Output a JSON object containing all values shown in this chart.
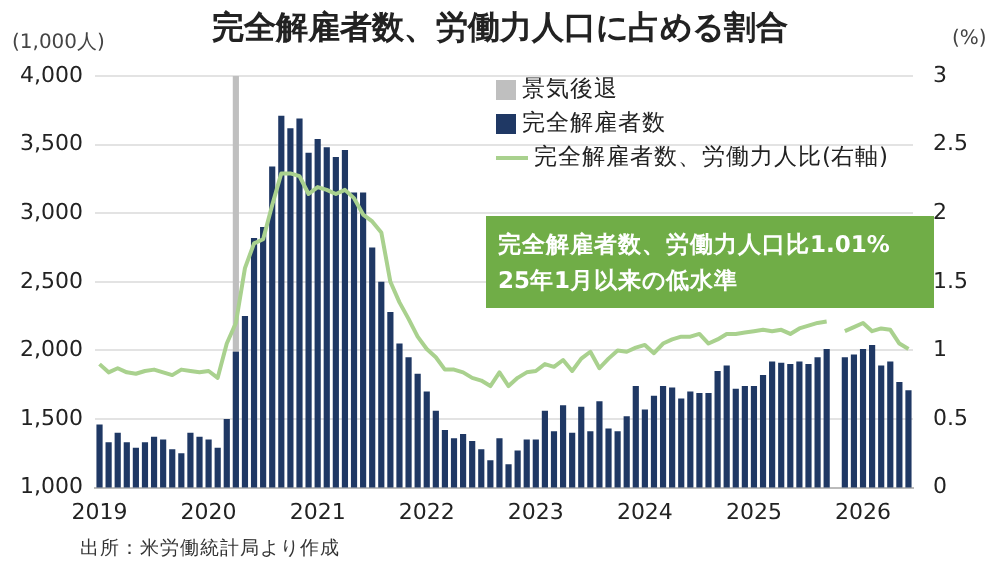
{
  "chart_data": {
    "type": "bar",
    "title": "完全解雇者数、労働力人口に占める割合",
    "ylabel": "(1,000人)",
    "y2label": "(%)",
    "categories": [
      "2019",
      null,
      null,
      null,
      null,
      null,
      null,
      null,
      null,
      null,
      null,
      null,
      "2020",
      null,
      null,
      null,
      null,
      null,
      null,
      null,
      null,
      null,
      null,
      null,
      "2021",
      null,
      null,
      null,
      null,
      null,
      null,
      null,
      null,
      null,
      null,
      null,
      "2022",
      null,
      null,
      null,
      null,
      null,
      null,
      null,
      null,
      null,
      null,
      null,
      "2023",
      null,
      null,
      null,
      null,
      null,
      null,
      null,
      null,
      null,
      null,
      null,
      "2024",
      null,
      null,
      null,
      null,
      null,
      null,
      null,
      null,
      null,
      null,
      null,
      "2025",
      null,
      null,
      null,
      null,
      null,
      null,
      null,
      null,
      null,
      null,
      null,
      "2026",
      null,
      null,
      null,
      null,
      null
    ],
    "series": [
      {
        "name": "景気後退",
        "color": "#bfbfbf",
        "values": [
          null,
          null,
          null,
          null,
          null,
          null,
          null,
          null,
          null,
          null,
          null,
          null,
          null,
          null,
          null,
          4000,
          null,
          null,
          null,
          null,
          null,
          null,
          null,
          null,
          null,
          null,
          null,
          null,
          null,
          null,
          null,
          null,
          null,
          null,
          null,
          null,
          null,
          null,
          null,
          null,
          null,
          null,
          null,
          null,
          null,
          null,
          null,
          null,
          null,
          null,
          null,
          null,
          null,
          null,
          null,
          null,
          null,
          null,
          null,
          null,
          null,
          null,
          null,
          null,
          null,
          null,
          null,
          null,
          null,
          null,
          null,
          null,
          null,
          null,
          null,
          null,
          null,
          null,
          null,
          null,
          null,
          null,
          null,
          null,
          null,
          null,
          null,
          null,
          null,
          null
        ]
      },
      {
        "name": "完全解雇者数",
        "color": "#1f3864",
        "values": [
          1460,
          1330,
          1400,
          1330,
          1290,
          1330,
          1370,
          1350,
          1280,
          1250,
          1400,
          1370,
          1350,
          1290,
          1500,
          1990,
          2250,
          2820,
          2900,
          3340,
          3710,
          3620,
          3690,
          3440,
          3540,
          3480,
          3410,
          3460,
          3150,
          3150,
          2750,
          2500,
          2280,
          2050,
          1950,
          1830,
          1700,
          1560,
          1420,
          1360,
          1390,
          1340,
          1280,
          1200,
          1360,
          1170,
          1270,
          1350,
          1350,
          1560,
          1410,
          1600,
          1400,
          1590,
          1410,
          1630,
          1430,
          1410,
          1520,
          1740,
          1570,
          1670,
          1740,
          1730,
          1650,
          1700,
          1690,
          1690,
          1850,
          1890,
          1720,
          1740,
          1740,
          1820,
          1920,
          1910,
          1900,
          1920,
          1900,
          1950,
          2010,
          null,
          1950,
          1970,
          2010,
          2040,
          1890,
          1920,
          1770,
          1710
        ]
      },
      {
        "name": "完全解雇者数、労働力人比(右軸)",
        "type": "line",
        "axis": "y2",
        "color": "#a9d18e",
        "values": [
          0.9,
          0.84,
          0.87,
          0.84,
          0.83,
          0.85,
          0.86,
          0.84,
          0.82,
          0.86,
          0.85,
          0.84,
          0.85,
          0.8,
          1.05,
          1.2,
          1.6,
          1.78,
          1.81,
          2.06,
          2.29,
          2.29,
          2.27,
          2.14,
          2.19,
          2.17,
          2.14,
          2.17,
          2.11,
          1.99,
          1.94,
          1.86,
          1.5,
          1.35,
          1.23,
          1.1,
          1.01,
          0.95,
          0.86,
          0.86,
          0.84,
          0.8,
          0.78,
          0.74,
          0.84,
          0.74,
          0.8,
          0.84,
          0.85,
          0.9,
          0.88,
          0.93,
          0.85,
          0.94,
          0.99,
          0.87,
          0.94,
          1.0,
          0.99,
          1.02,
          1.04,
          0.98,
          1.05,
          1.08,
          1.1,
          1.1,
          1.12,
          1.05,
          1.08,
          1.12,
          1.12,
          1.13,
          1.14,
          1.15,
          1.14,
          1.15,
          1.12,
          1.16,
          1.18,
          1.2,
          1.21,
          null,
          1.14,
          1.17,
          1.2,
          1.14,
          1.16,
          1.15,
          1.05,
          1.01
        ]
      }
    ],
    "ylim": [
      1000,
      4000
    ],
    "yticks": [
      {
        "value": 1000,
        "label": "1,000"
      },
      {
        "value": 1500,
        "label": "1,500"
      },
      {
        "value": 2000,
        "label": "2,000"
      },
      {
        "value": 2500,
        "label": "2,500"
      },
      {
        "value": 3000,
        "label": "3,000"
      },
      {
        "value": 3500,
        "label": "3,500"
      },
      {
        "value": 4000,
        "label": "4,000"
      }
    ],
    "y2lim": [
      0,
      3
    ],
    "y2ticks": [
      0,
      0.5,
      1,
      1.5,
      2,
      2.5,
      3
    ],
    "grid": "y",
    "legend": "top right",
    "marker": "none",
    "annotations": [
      "完全解雇者数、労働力人口比1.01%\n25年1月以来の低水準",
      "出所：米労働統計局より作成"
    ]
  }
}
